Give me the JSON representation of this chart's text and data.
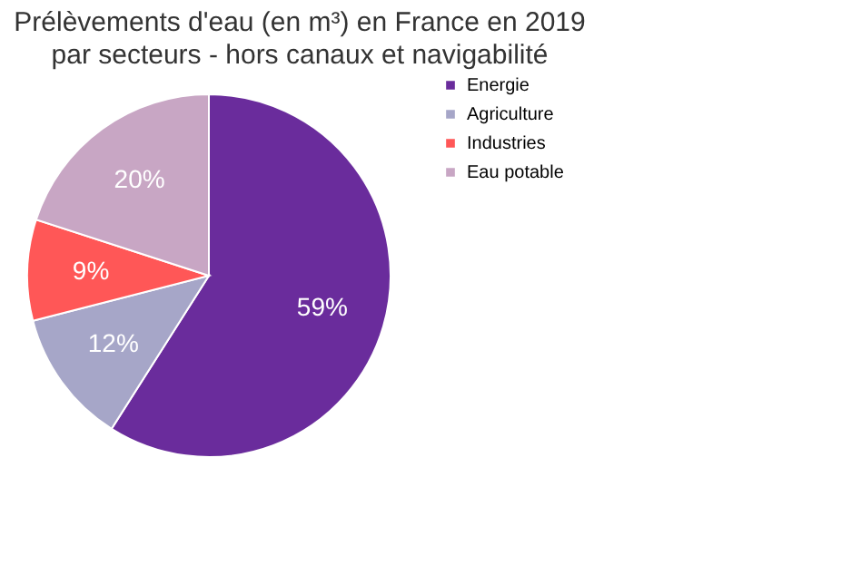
{
  "chart_data": {
    "type": "pie",
    "title": "Prélèvements d'eau (en m³) en France en 2019",
    "subtitle": "par secteurs - hors canaux et navigabilité",
    "categories": [
      "Energie",
      "Agriculture",
      "Industries",
      "Eau potable"
    ],
    "values": [
      59,
      12,
      9,
      20
    ],
    "colors": [
      "#6a2c9c",
      "#a6a6c8",
      "#ff5757",
      "#c8a6c4"
    ],
    "value_labels": [
      "59%",
      "12%",
      "9%",
      "20%"
    ],
    "legend": "right"
  }
}
